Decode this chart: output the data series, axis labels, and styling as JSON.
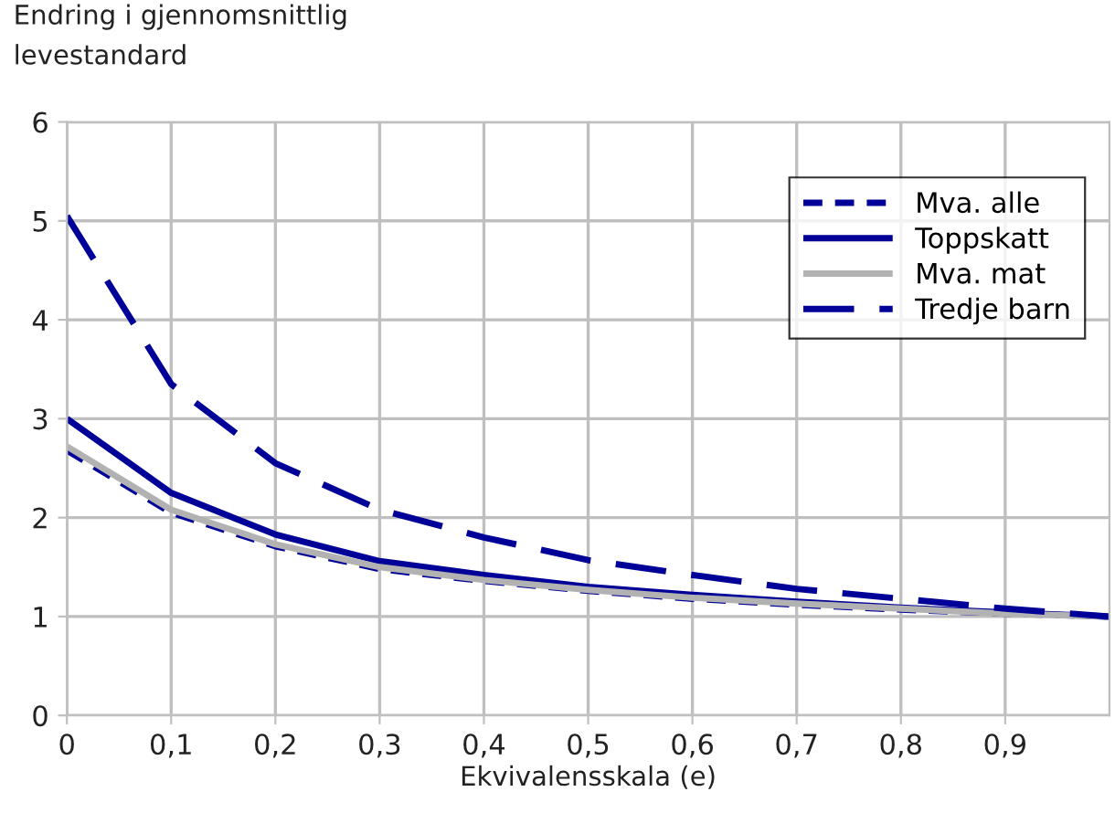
{
  "chart_data": {
    "type": "line",
    "ylabel": "Endring i gjennomsnittlig\nlevestandard",
    "xlabel": "Ekvivalensskala (e)",
    "x": [
      0,
      0.1,
      0.2,
      0.3,
      0.4,
      0.5,
      0.6,
      0.7,
      0.8,
      0.9,
      1.0
    ],
    "series": [
      {
        "name": "Mva. alle",
        "color": "#000099",
        "line_style": "dotted",
        "values": [
          2.68,
          2.05,
          1.71,
          1.48,
          1.36,
          1.26,
          1.18,
          1.12,
          1.07,
          1.03,
          1.0
        ]
      },
      {
        "name": "Toppskatt",
        "color": "#000099",
        "line_style": "solid",
        "values": [
          3.0,
          2.25,
          1.83,
          1.56,
          1.42,
          1.3,
          1.22,
          1.15,
          1.09,
          1.04,
          1.0
        ]
      },
      {
        "name": "Mva. mat",
        "color": "#b2b2b2",
        "line_style": "solid",
        "values": [
          2.72,
          2.08,
          1.73,
          1.5,
          1.37,
          1.27,
          1.19,
          1.13,
          1.08,
          1.03,
          1.0
        ]
      },
      {
        "name": "Tredje barn",
        "color": "#000099",
        "line_style": "dashed",
        "values": [
          5.05,
          3.35,
          2.55,
          2.08,
          1.8,
          1.57,
          1.42,
          1.28,
          1.18,
          1.08,
          1.0
        ]
      }
    ],
    "xlim": [
      0,
      1
    ],
    "ylim": [
      0,
      6
    ],
    "xticks": [
      {
        "value": 0,
        "label": "0"
      },
      {
        "value": 0.1,
        "label": "0,1"
      },
      {
        "value": 0.2,
        "label": "0,2"
      },
      {
        "value": 0.3,
        "label": "0,3"
      },
      {
        "value": 0.4,
        "label": "0,4"
      },
      {
        "value": 0.5,
        "label": "0,5"
      },
      {
        "value": 0.6,
        "label": "0,6"
      },
      {
        "value": 0.7,
        "label": "0,7"
      },
      {
        "value": 0.8,
        "label": "0,8"
      },
      {
        "value": 0.9,
        "label": "0,9"
      }
    ],
    "yticks": [
      0,
      1,
      2,
      3,
      4,
      5,
      6
    ],
    "grid": true,
    "legend": "top right",
    "marker": "none"
  }
}
